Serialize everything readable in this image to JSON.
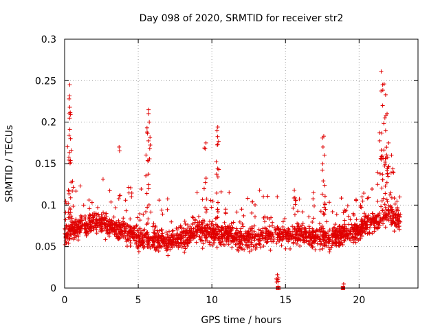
{
  "chart_data": {
    "type": "scatter",
    "title": "Day 098 of 2020, SRMTID for receiver str2",
    "xlabel": "GPS time / hours",
    "ylabel": "SRMTID / TECUs",
    "xlim": [
      0,
      24
    ],
    "ylim": [
      0,
      0.3
    ],
    "x_ticks": [
      0,
      5,
      10,
      15,
      20
    ],
    "y_ticks": [
      0,
      0.05,
      0.1,
      0.15,
      0.2,
      0.25,
      0.3
    ],
    "x_tick_labels": [
      "0",
      "5",
      "10",
      "15",
      "20"
    ],
    "y_tick_labels": [
      "0",
      "0.05",
      "0.1",
      "0.15",
      "0.2",
      "0.25",
      "0.3"
    ],
    "grid": true,
    "marker": "+",
    "color": "#e00000",
    "series": [
      {
        "name": "SRMTID",
        "approx_profile": [
          [
            0.0,
            0.065
          ],
          [
            1.0,
            0.075
          ],
          [
            2.0,
            0.08
          ],
          [
            3.0,
            0.075
          ],
          [
            4.0,
            0.07
          ],
          [
            5.0,
            0.06
          ],
          [
            6.0,
            0.06
          ],
          [
            7.0,
            0.055
          ],
          [
            8.0,
            0.06
          ],
          [
            9.0,
            0.07
          ],
          [
            10.0,
            0.065
          ],
          [
            11.0,
            0.065
          ],
          [
            12.0,
            0.06
          ],
          [
            13.0,
            0.06
          ],
          [
            14.0,
            0.065
          ],
          [
            15.0,
            0.065
          ],
          [
            16.0,
            0.065
          ],
          [
            17.0,
            0.06
          ],
          [
            18.0,
            0.06
          ],
          [
            19.0,
            0.065
          ],
          [
            20.0,
            0.07
          ],
          [
            21.0,
            0.08
          ],
          [
            22.0,
            0.09
          ],
          [
            22.8,
            0.08
          ]
        ],
        "notable_points": [
          [
            0.35,
            0.245
          ],
          [
            0.3,
            0.228
          ],
          [
            0.35,
            0.218
          ],
          [
            0.3,
            0.184
          ],
          [
            0.4,
            0.18
          ],
          [
            0.45,
            0.166
          ],
          [
            3.7,
            0.17
          ],
          [
            5.7,
            0.215
          ],
          [
            5.7,
            0.21
          ],
          [
            5.75,
            0.2
          ],
          [
            5.6,
            0.188
          ],
          [
            9.6,
            0.175
          ],
          [
            9.55,
            0.168
          ],
          [
            10.4,
            0.194
          ],
          [
            10.35,
            0.19
          ],
          [
            10.4,
            0.173
          ],
          [
            17.6,
            0.183
          ],
          [
            17.55,
            0.17
          ],
          [
            17.65,
            0.16
          ],
          [
            21.5,
            0.261
          ],
          [
            21.6,
            0.245
          ],
          [
            21.7,
            0.246
          ],
          [
            21.8,
            0.233
          ],
          [
            21.6,
            0.22
          ],
          [
            21.9,
            0.21
          ],
          [
            21.75,
            0.205
          ],
          [
            21.8,
            0.19
          ],
          [
            22.0,
            0.175
          ],
          [
            14.55,
            0.0
          ],
          [
            14.5,
            0.008
          ],
          [
            14.45,
            0.016
          ],
          [
            18.9,
            0.0
          ],
          [
            18.95,
            0.005
          ],
          [
            15.6,
            0.118
          ],
          [
            16.9,
            0.115
          ],
          [
            19.0,
            0.094
          ],
          [
            20.2,
            0.11
          ],
          [
            20.1,
            0.1
          ],
          [
            22.2,
            0.16
          ],
          [
            22.3,
            0.14
          ]
        ]
      }
    ]
  }
}
